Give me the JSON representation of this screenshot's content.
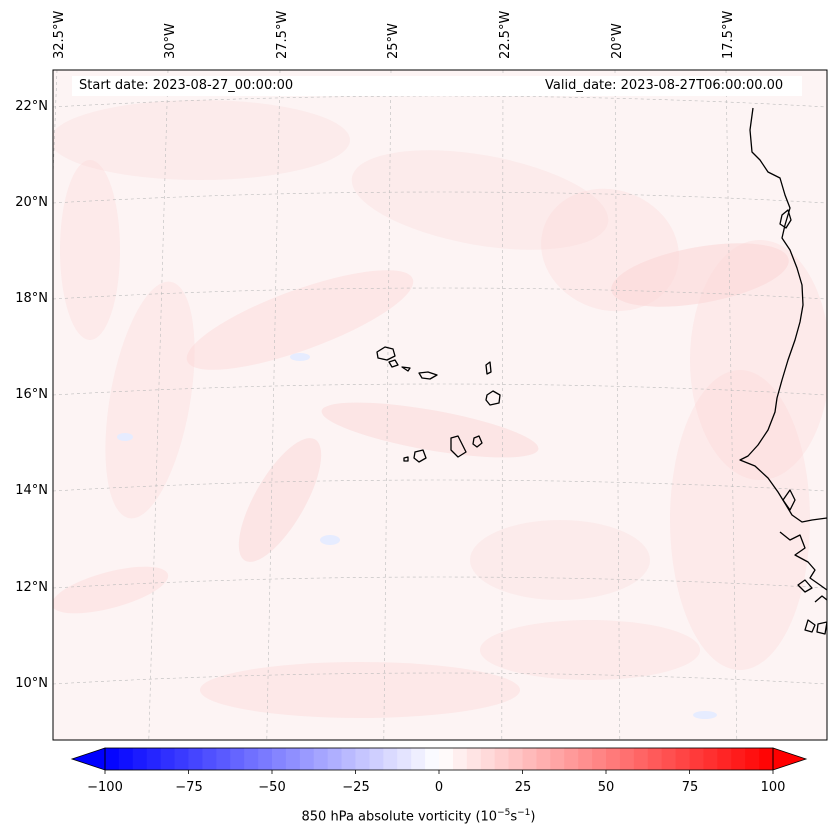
{
  "header": {
    "start_date": "Start date: 2023-08-27_00:00:00",
    "valid_date": "Valid_date: 2023-08-27T06:00:00.00"
  },
  "longitude_labels": [
    "32.5°W",
    "30°W",
    "27.5°W",
    "25°W",
    "22.5°W",
    "20°W",
    "17.5°W"
  ],
  "latitude_labels": [
    "22°N",
    "20°N",
    "18°N",
    "16°N",
    "14°N",
    "12°N",
    "10°N"
  ],
  "colorbar": {
    "ticks": [
      "−100",
      "−75",
      "−50",
      "−25",
      "0",
      "25",
      "50",
      "75",
      "100"
    ],
    "label_text": "850 hPa absolute vorticity (10",
    "label_exp1": "−5",
    "label_mid": "s",
    "label_exp2": "−1",
    "label_end": ")",
    "min": -100,
    "max": 100,
    "levels": 48,
    "color_low": "#0000ff",
    "color_mid": "#ffffff",
    "color_high": "#ff0000",
    "extend": "both"
  },
  "map": {
    "extent_lon": [
      -32.8,
      -15.6
    ],
    "extent_lat": [
      8.9,
      22.8
    ],
    "background_color": "#fdf4f4",
    "coastline_color": "#000000",
    "gridline_color": "#bbbbbb"
  }
}
